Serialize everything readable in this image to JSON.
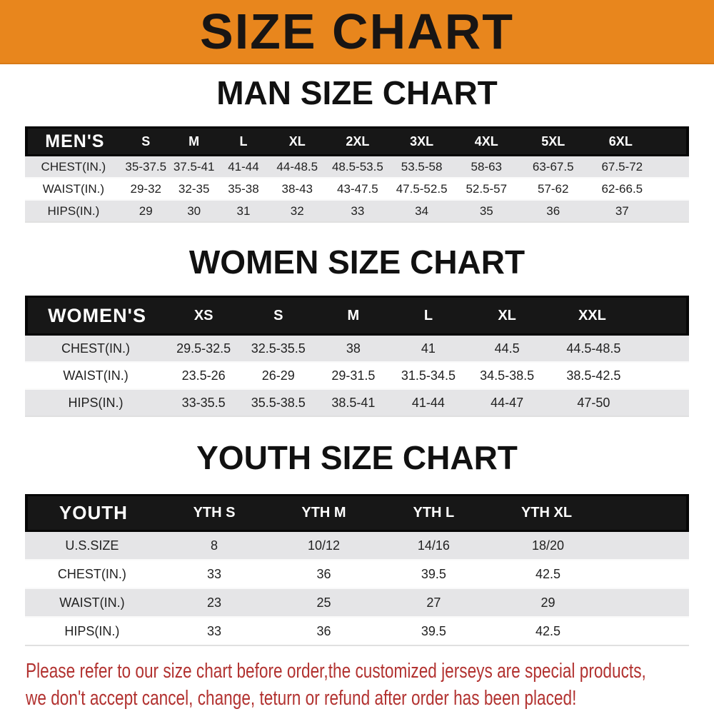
{
  "banner": {
    "title": "SIZE CHART"
  },
  "sections": [
    {
      "title": "MAN SIZE CHART",
      "header": [
        "MEN'S",
        "S",
        "M",
        "L",
        "XL",
        "2XL",
        "3XL",
        "4XL",
        "5XL",
        "6XL"
      ],
      "rows": [
        {
          "label": "CHEST(IN.)",
          "values": [
            "35-37.5",
            "37.5-41",
            "41-44",
            "44-48.5",
            "48.5-53.5",
            "53.5-58",
            "58-63",
            "63-67.5",
            "67.5-72"
          ]
        },
        {
          "label": "WAIST(IN.)",
          "values": [
            "29-32",
            "32-35",
            "35-38",
            "38-43",
            "43-47.5",
            "47.5-52.5",
            "52.5-57",
            "57-62",
            "62-66.5"
          ]
        },
        {
          "label": "HIPS(IN.)",
          "values": [
            "29",
            "30",
            "31",
            "32",
            "33",
            "34",
            "35",
            "36",
            "37"
          ]
        }
      ]
    },
    {
      "title": "WOMEN SIZE CHART",
      "header": [
        "WOMEN'S",
        "XS",
        "S",
        "M",
        "L",
        "XL",
        "XXL"
      ],
      "rows": [
        {
          "label": "CHEST(IN.)",
          "values": [
            "29.5-32.5",
            "32.5-35.5",
            "38",
            "41",
            "44.5",
            "44.5-48.5"
          ]
        },
        {
          "label": "WAIST(IN.)",
          "values": [
            "23.5-26",
            "26-29",
            "29-31.5",
            "31.5-34.5",
            "34.5-38.5",
            "38.5-42.5"
          ]
        },
        {
          "label": "HIPS(IN.)",
          "values": [
            "33-35.5",
            "35.5-38.5",
            "38.5-41",
            "41-44",
            "44-47",
            "47-50"
          ]
        }
      ]
    },
    {
      "title": "YOUTH SIZE CHART",
      "header": [
        "YOUTH",
        "YTH S",
        "YTH M",
        "YTH L",
        "YTH XL"
      ],
      "rows": [
        {
          "label": "U.S.SIZE",
          "values": [
            "8",
            "10/12",
            "14/16",
            "18/20"
          ]
        },
        {
          "label": "CHEST(IN.)",
          "values": [
            "33",
            "36",
            "39.5",
            "42.5"
          ]
        },
        {
          "label": "WAIST(IN.)",
          "values": [
            "23",
            "25",
            "27",
            "29"
          ]
        },
        {
          "label": "HIPS(IN.)",
          "values": [
            "33",
            "36",
            "39.5",
            "42.5"
          ]
        }
      ]
    }
  ],
  "disclaimer": {
    "line1": "Please refer to our size chart before order,the customized jerseys are special products,",
    "line2": "we don't accept cancel, change, teturn or refund after order has been placed!"
  },
  "colors": {
    "banner_bg": "#e8861d",
    "header_bar_bg": "#171717",
    "header_bar_text": "#ffffff",
    "shaded_row_bg": "#e5e5e7",
    "disclaimer_text": "#b23230"
  }
}
